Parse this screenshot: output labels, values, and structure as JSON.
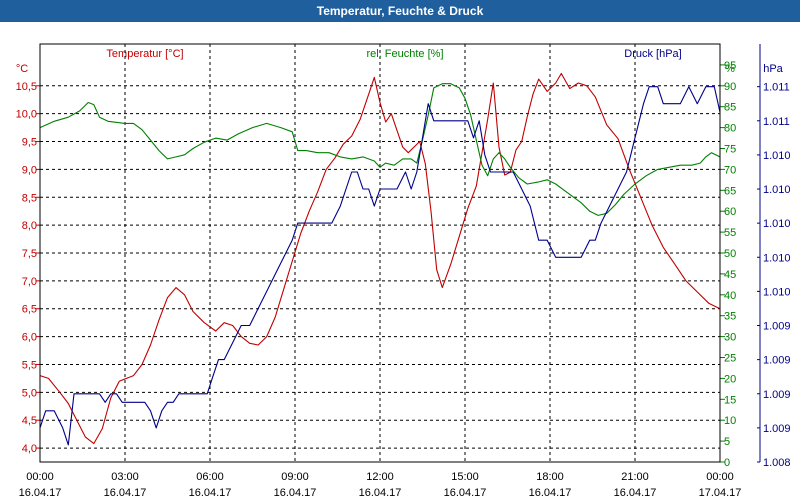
{
  "window": {
    "title": "Temperatur, Feuchte & Druck"
  },
  "chart_data": {
    "type": "line",
    "title": "Temperatur, Feuchte & Druck",
    "x_ticks": [
      {
        "time": "00:00",
        "date": "16.04.17",
        "hour": 0
      },
      {
        "time": "03:00",
        "date": "16.04.17",
        "hour": 3
      },
      {
        "time": "06:00",
        "date": "16.04.17",
        "hour": 6
      },
      {
        "time": "09:00",
        "date": "16.04.17",
        "hour": 9
      },
      {
        "time": "12:00",
        "date": "16.04.17",
        "hour": 12
      },
      {
        "time": "15:00",
        "date": "16.04.17",
        "hour": 15
      },
      {
        "time": "18:00",
        "date": "16.04.17",
        "hour": 18
      },
      {
        "time": "21:00",
        "date": "16.04.17",
        "hour": 21
      },
      {
        "time": "00:00",
        "date": "17.04.17",
        "hour": 24
      }
    ],
    "xlim": [
      0,
      24
    ],
    "grid": true,
    "axes": {
      "temperature": {
        "label": "Temperatur [°C]",
        "unit": "°C",
        "color": "#c00000",
        "ylim": [
          3.75,
          11.25
        ],
        "ticks": [
          4.0,
          4.5,
          5.0,
          5.5,
          6.0,
          6.5,
          7.0,
          7.5,
          8.0,
          8.5,
          9.0,
          9.5,
          10.0,
          10.5
        ],
        "tick_labels": [
          "4,0",
          "4,5",
          "5,0",
          "5,5",
          "6,0",
          "6,5",
          "7,0",
          "7,5",
          "8,0",
          "8,5",
          "9,0",
          "9,5",
          "10,0",
          "10,5"
        ]
      },
      "humidity": {
        "label": "rel. Feuchte [%]",
        "unit": "%",
        "color": "#008000",
        "ylim": [
          0,
          100
        ],
        "ticks": [
          0,
          5,
          10,
          15,
          20,
          25,
          30,
          35,
          40,
          45,
          50,
          55,
          60,
          65,
          70,
          75,
          80,
          85,
          90,
          95
        ],
        "tick_labels": [
          "0",
          "5",
          "10",
          "15",
          "20",
          "25",
          "30",
          "35",
          "40",
          "45",
          "50",
          "55",
          "60",
          "65",
          "70",
          "75",
          "80",
          "85",
          "90",
          "95"
        ]
      },
      "pressure": {
        "label": "Druck [hPa]",
        "unit": "hPa",
        "color": "#00008b",
        "ylim": [
          0,
          24.5
        ],
        "ticks": [
          0,
          2,
          4,
          6,
          8,
          10,
          12,
          14,
          16,
          18,
          20,
          22
        ],
        "tick_labels": [
          "1.008",
          "1.009",
          "1.009",
          "1.009",
          "1.009",
          "1.010",
          "1.010",
          "1.010",
          "1.010",
          "1.010",
          "1.011",
          "1.011"
        ]
      }
    },
    "series": [
      {
        "name": "Temperatur",
        "axis": "temperature",
        "color": "#c00000",
        "points": [
          [
            0,
            5.3
          ],
          [
            0.3,
            5.25
          ],
          [
            0.7,
            5.0
          ],
          [
            1.0,
            4.8
          ],
          [
            1.3,
            4.5
          ],
          [
            1.6,
            4.2
          ],
          [
            1.9,
            4.08
          ],
          [
            2.2,
            4.35
          ],
          [
            2.5,
            4.9
          ],
          [
            2.8,
            5.2
          ],
          [
            3.3,
            5.3
          ],
          [
            3.6,
            5.5
          ],
          [
            3.9,
            5.85
          ],
          [
            4.2,
            6.3
          ],
          [
            4.5,
            6.7
          ],
          [
            4.8,
            6.88
          ],
          [
            5.1,
            6.75
          ],
          [
            5.4,
            6.45
          ],
          [
            5.8,
            6.25
          ],
          [
            6.2,
            6.1
          ],
          [
            6.5,
            6.25
          ],
          [
            6.8,
            6.2
          ],
          [
            7.1,
            6.0
          ],
          [
            7.4,
            5.88
          ],
          [
            7.7,
            5.85
          ],
          [
            8.0,
            6.0
          ],
          [
            8.3,
            6.35
          ],
          [
            8.6,
            6.85
          ],
          [
            8.9,
            7.35
          ],
          [
            9.2,
            7.85
          ],
          [
            9.5,
            8.25
          ],
          [
            9.8,
            8.6
          ],
          [
            10.1,
            9.0
          ],
          [
            10.4,
            9.2
          ],
          [
            10.7,
            9.45
          ],
          [
            11.0,
            9.6
          ],
          [
            11.3,
            9.9
          ],
          [
            11.6,
            10.35
          ],
          [
            11.8,
            10.65
          ],
          [
            12.0,
            10.2
          ],
          [
            12.2,
            9.85
          ],
          [
            12.4,
            10.0
          ],
          [
            12.6,
            9.7
          ],
          [
            12.8,
            9.4
          ],
          [
            13.0,
            9.3
          ],
          [
            13.2,
            9.4
          ],
          [
            13.4,
            9.5
          ],
          [
            13.6,
            9.1
          ],
          [
            13.8,
            8.25
          ],
          [
            14.0,
            7.2
          ],
          [
            14.2,
            6.88
          ],
          [
            14.5,
            7.3
          ],
          [
            14.8,
            7.8
          ],
          [
            15.1,
            8.3
          ],
          [
            15.4,
            8.7
          ],
          [
            15.6,
            9.3
          ],
          [
            15.8,
            9.9
          ],
          [
            16.0,
            10.55
          ],
          [
            16.2,
            9.4
          ],
          [
            16.4,
            8.9
          ],
          [
            16.6,
            8.95
          ],
          [
            16.8,
            9.35
          ],
          [
            17.0,
            9.5
          ],
          [
            17.2,
            9.95
          ],
          [
            17.4,
            10.35
          ],
          [
            17.6,
            10.62
          ],
          [
            17.9,
            10.4
          ],
          [
            18.2,
            10.55
          ],
          [
            18.4,
            10.72
          ],
          [
            18.7,
            10.45
          ],
          [
            19.0,
            10.55
          ],
          [
            19.3,
            10.5
          ],
          [
            19.6,
            10.3
          ],
          [
            20.0,
            9.8
          ],
          [
            20.4,
            9.55
          ],
          [
            20.8,
            9.0
          ],
          [
            21.2,
            8.5
          ],
          [
            21.6,
            8.0
          ],
          [
            22.0,
            7.6
          ],
          [
            22.4,
            7.3
          ],
          [
            22.8,
            7.0
          ],
          [
            23.2,
            6.8
          ],
          [
            23.6,
            6.6
          ],
          [
            24.0,
            6.5
          ]
        ]
      },
      {
        "name": "rel. Feuchte",
        "axis": "humidity",
        "color": "#008000",
        "points": [
          [
            0,
            80
          ],
          [
            0.5,
            81.5
          ],
          [
            1.0,
            82.5
          ],
          [
            1.4,
            84
          ],
          [
            1.7,
            86
          ],
          [
            1.9,
            85.5
          ],
          [
            2.1,
            82.5
          ],
          [
            2.4,
            81.5
          ],
          [
            3.0,
            81
          ],
          [
            3.3,
            81
          ],
          [
            3.6,
            79.5
          ],
          [
            3.9,
            77
          ],
          [
            4.2,
            74.5
          ],
          [
            4.5,
            72.5
          ],
          [
            4.8,
            73
          ],
          [
            5.1,
            73.5
          ],
          [
            5.4,
            75
          ],
          [
            5.8,
            76.5
          ],
          [
            6.2,
            77.5
          ],
          [
            6.6,
            77
          ],
          [
            7.0,
            78.5
          ],
          [
            7.5,
            80
          ],
          [
            8.0,
            81
          ],
          [
            8.5,
            80
          ],
          [
            8.9,
            79
          ],
          [
            9.1,
            74.5
          ],
          [
            9.4,
            74.5
          ],
          [
            9.8,
            74
          ],
          [
            10.2,
            74
          ],
          [
            10.6,
            73
          ],
          [
            11.0,
            72.5
          ],
          [
            11.4,
            73
          ],
          [
            11.8,
            72
          ],
          [
            12.0,
            70.5
          ],
          [
            12.2,
            71.5
          ],
          [
            12.5,
            71
          ],
          [
            12.8,
            72.5
          ],
          [
            13.1,
            72.5
          ],
          [
            13.3,
            71.5
          ],
          [
            13.5,
            77
          ],
          [
            13.7,
            83
          ],
          [
            13.9,
            89.5
          ],
          [
            14.2,
            90.5
          ],
          [
            14.5,
            90.5
          ],
          [
            14.8,
            89.5
          ],
          [
            15.0,
            87
          ],
          [
            15.2,
            83
          ],
          [
            15.4,
            77
          ],
          [
            15.6,
            71
          ],
          [
            15.8,
            68.5
          ],
          [
            16.0,
            72.5
          ],
          [
            16.2,
            74
          ],
          [
            16.4,
            72.5
          ],
          [
            16.6,
            70.5
          ],
          [
            16.9,
            68
          ],
          [
            17.2,
            66.5
          ],
          [
            17.6,
            67
          ],
          [
            17.9,
            67.5
          ],
          [
            18.2,
            66.5
          ],
          [
            18.5,
            65
          ],
          [
            18.8,
            63.5
          ],
          [
            19.1,
            62
          ],
          [
            19.4,
            60
          ],
          [
            19.7,
            59
          ],
          [
            20.0,
            59.5
          ],
          [
            20.3,
            61.5
          ],
          [
            20.6,
            64
          ],
          [
            21.0,
            66.5
          ],
          [
            21.4,
            68.5
          ],
          [
            21.8,
            70
          ],
          [
            22.2,
            70.5
          ],
          [
            22.6,
            71
          ],
          [
            23.0,
            71
          ],
          [
            23.3,
            71.5
          ],
          [
            23.5,
            73
          ],
          [
            23.7,
            74
          ],
          [
            24.0,
            73
          ]
        ]
      },
      {
        "name": "Druck",
        "axis": "pressure",
        "color": "#00008b",
        "points": [
          [
            0,
            2
          ],
          [
            0.2,
            3
          ],
          [
            0.5,
            3
          ],
          [
            0.8,
            2
          ],
          [
            1.0,
            1
          ],
          [
            1.2,
            4
          ],
          [
            1.5,
            4
          ],
          [
            1.7,
            4
          ],
          [
            1.9,
            4
          ],
          [
            2.1,
            4
          ],
          [
            2.3,
            3.5
          ],
          [
            2.5,
            4
          ],
          [
            2.7,
            4
          ],
          [
            2.9,
            3.5
          ],
          [
            3.1,
            3.5
          ],
          [
            3.3,
            3.5
          ],
          [
            3.5,
            3.5
          ],
          [
            3.7,
            3.5
          ],
          [
            3.9,
            3
          ],
          [
            4.1,
            2
          ],
          [
            4.3,
            3
          ],
          [
            4.5,
            3.5
          ],
          [
            4.7,
            3.5
          ],
          [
            4.9,
            4
          ],
          [
            5.1,
            4
          ],
          [
            5.3,
            4
          ],
          [
            5.5,
            4
          ],
          [
            5.7,
            4
          ],
          [
            5.9,
            4
          ],
          [
            6.1,
            5
          ],
          [
            6.3,
            6
          ],
          [
            6.5,
            6
          ],
          [
            6.8,
            7
          ],
          [
            7.1,
            8
          ],
          [
            7.4,
            8
          ],
          [
            7.7,
            9
          ],
          [
            8.0,
            10
          ],
          [
            8.3,
            11
          ],
          [
            8.6,
            12
          ],
          [
            8.9,
            13
          ],
          [
            9.1,
            14
          ],
          [
            9.4,
            14
          ],
          [
            9.7,
            14
          ],
          [
            10.0,
            14
          ],
          [
            10.3,
            14
          ],
          [
            10.6,
            15
          ],
          [
            10.8,
            16
          ],
          [
            11.0,
            17
          ],
          [
            11.2,
            17
          ],
          [
            11.4,
            16
          ],
          [
            11.6,
            16
          ],
          [
            11.8,
            15
          ],
          [
            12.0,
            16
          ],
          [
            12.3,
            16
          ],
          [
            12.6,
            16
          ],
          [
            12.9,
            17
          ],
          [
            13.1,
            16
          ],
          [
            13.3,
            17
          ],
          [
            13.5,
            19
          ],
          [
            13.7,
            21
          ],
          [
            13.9,
            20
          ],
          [
            14.2,
            20
          ],
          [
            14.5,
            20
          ],
          [
            14.8,
            20
          ],
          [
            15.1,
            20
          ],
          [
            15.3,
            19
          ],
          [
            15.5,
            20
          ],
          [
            15.7,
            18
          ],
          [
            15.9,
            17
          ],
          [
            16.1,
            17
          ],
          [
            16.4,
            17
          ],
          [
            16.7,
            17
          ],
          [
            17.0,
            16
          ],
          [
            17.3,
            15
          ],
          [
            17.6,
            13
          ],
          [
            17.9,
            13
          ],
          [
            18.2,
            12
          ],
          [
            18.5,
            12
          ],
          [
            18.8,
            12
          ],
          [
            19.1,
            12
          ],
          [
            19.4,
            13
          ],
          [
            19.6,
            13
          ],
          [
            19.8,
            14
          ],
          [
            20.1,
            15
          ],
          [
            20.4,
            16
          ],
          [
            20.7,
            17
          ],
          [
            21.0,
            19
          ],
          [
            21.3,
            21
          ],
          [
            21.5,
            22
          ],
          [
            21.8,
            22
          ],
          [
            22.0,
            21
          ],
          [
            22.3,
            21
          ],
          [
            22.6,
            21
          ],
          [
            22.9,
            22
          ],
          [
            23.2,
            21
          ],
          [
            23.5,
            22
          ],
          [
            23.8,
            22
          ],
          [
            24.0,
            20.5
          ]
        ]
      }
    ]
  }
}
